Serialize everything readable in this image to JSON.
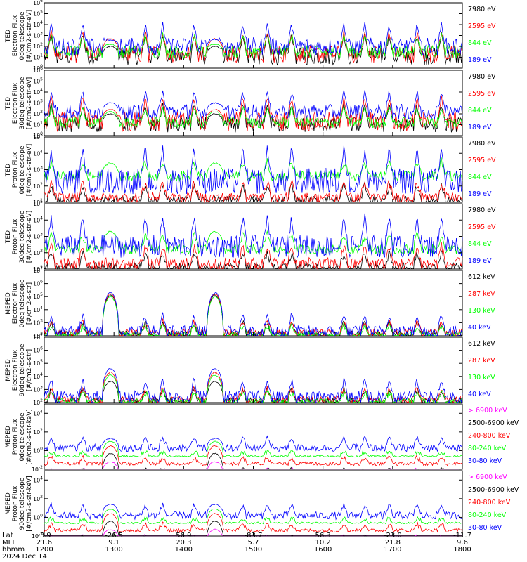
{
  "colors": {
    "blue": "#0000ff",
    "red": "#ff0000",
    "green": "#00ff00",
    "black": "#000000",
    "magenta": "#ff00ff"
  },
  "bottom_axis": {
    "row_labels": [
      "Lat",
      "MLT",
      "hhmm",
      "2024 Dec 14"
    ],
    "lat": [
      "-3.9",
      "-26.5",
      "56.9",
      "-83.7",
      "56.3",
      "-23.0",
      "-11.7"
    ],
    "mlt": [
      "21.6",
      "9.1",
      "20.3",
      "5.7",
      "10.2",
      "21.8",
      "9.6"
    ],
    "hhmm": [
      "1200",
      "1300",
      "1400",
      "1500",
      "1600",
      "1700",
      "1800"
    ]
  },
  "chart_data": [
    {
      "type": "line",
      "yscale": "log",
      "ylabel": [
        "TED",
        "Electron Flux",
        "0deg telescope",
        "[#/cm2-s-str-eV]"
      ],
      "yticks": [
        "10^0",
        "10^1",
        "10^2",
        "10^3",
        "10^4",
        "10^5",
        "10^6"
      ],
      "ylim": [
        1,
        1000000
      ],
      "xlim": [
        1200,
        1800
      ],
      "series": [
        {
          "name": "7980 eV",
          "color": "black",
          "base": 1.1,
          "noise": 0.8,
          "arcs": 1,
          "arc_peak": 2.0
        },
        {
          "name": "2595 eV",
          "color": "red",
          "base": 1.3,
          "noise": 0.8,
          "arcs": 1,
          "arc_peak": 2.7
        },
        {
          "name": "844 eV",
          "color": "green",
          "base": 1.5,
          "noise": 0.6,
          "arcs": 1,
          "arc_peak": 2.2
        },
        {
          "name": "189 eV",
          "color": "blue",
          "base": 2.0,
          "noise": 0.8,
          "arcs": 1,
          "arc_peak": 2.6
        }
      ]
    },
    {
      "type": "line",
      "yscale": "log",
      "ylabel": [
        "TED",
        "Electron Flux",
        "30deg telescope",
        "[#/cm2-s-str-eV]"
      ],
      "yticks": [
        "10^0",
        "10^1",
        "10^2",
        "10^3",
        "10^4",
        "10^5",
        "10^6"
      ],
      "ylim": [
        1,
        1000000
      ],
      "xlim": [
        1200,
        1800
      ],
      "series": [
        {
          "name": "7980 eV",
          "color": "black",
          "base": 1.0,
          "noise": 0.7,
          "arcs": 1,
          "arc_peak": 2.0
        },
        {
          "name": "2595 eV",
          "color": "red",
          "base": 1.3,
          "noise": 0.9,
          "arcs": 1,
          "arc_peak": 2.4
        },
        {
          "name": "844 eV",
          "color": "green",
          "base": 1.2,
          "noise": 0.5,
          "arcs": 1,
          "arc_peak": 2.2
        },
        {
          "name": "189 eV",
          "color": "blue",
          "base": 2.2,
          "noise": 0.7,
          "arcs": 1,
          "arc_peak": 3.0
        }
      ]
    },
    {
      "type": "line",
      "yscale": "log",
      "ylabel": [
        "TED",
        "Proton Flux",
        "0deg telescope",
        "[#/cm2-s-str-eV]"
      ],
      "yticks": [
        "10^1",
        "10^2",
        "10^3",
        "10^4",
        "10^5"
      ],
      "ylim": [
        10,
        100000
      ],
      "xlim": [
        1200,
        1800
      ],
      "series": [
        {
          "name": "7980 eV",
          "color": "black",
          "base": 1.1,
          "noise": 0.3,
          "arcs": 0,
          "arc_peak": 0
        },
        {
          "name": "2595 eV",
          "color": "red",
          "base": 1.3,
          "noise": 0.3,
          "arcs": 0,
          "arc_peak": 0
        },
        {
          "name": "844 eV",
          "color": "green",
          "base": 2.6,
          "noise": 0.3,
          "arcs": 1,
          "arc_peak": 3.4
        },
        {
          "name": "189 eV",
          "color": "blue",
          "base": 2.3,
          "noise": 0.8,
          "arcs": 0,
          "arc_peak": 0
        }
      ]
    },
    {
      "type": "line",
      "yscale": "log",
      "ylabel": [
        "TED",
        "Proton Flux",
        "30deg telescope",
        "[#/cm2-s-str-eV]"
      ],
      "yticks": [
        "10^1",
        "10^2",
        "10^3",
        "10^4",
        "10^5"
      ],
      "ylim": [
        10,
        100000
      ],
      "xlim": [
        1200,
        1800
      ],
      "series": [
        {
          "name": "7980 eV",
          "color": "black",
          "base": 1.1,
          "noise": 0.3,
          "arcs": 0,
          "arc_peak": 0
        },
        {
          "name": "2595 eV",
          "color": "red",
          "base": 1.3,
          "noise": 0.4,
          "arcs": 0,
          "arc_peak": 0
        },
        {
          "name": "844 eV",
          "color": "green",
          "base": 2.2,
          "noise": 0.3,
          "arcs": 1,
          "arc_peak": 3.3
        },
        {
          "name": "189 eV",
          "color": "blue",
          "base": 2.4,
          "noise": 0.7,
          "arcs": 0,
          "arc_peak": 0
        }
      ]
    },
    {
      "type": "line",
      "yscale": "log",
      "ylabel": [
        "MEPED",
        "Electron Flux",
        "0deg telescope",
        "[#/cm2-s-str]"
      ],
      "yticks": [
        "10^2",
        "10^3",
        "10^4",
        "10^5",
        "10^6",
        "10^7"
      ],
      "ylim": [
        100,
        10000000
      ],
      "xlim": [
        1200,
        1800
      ],
      "series": [
        {
          "name": "612 keV",
          "color": "black",
          "base": 2.1,
          "noise": 0.3,
          "arcs": 1,
          "arc_peak": 5.1
        },
        {
          "name": "287 keV",
          "color": "red",
          "base": 2.2,
          "noise": 0.3,
          "arcs": 1,
          "arc_peak": 5.2
        },
        {
          "name": "130 keV",
          "color": "green",
          "base": 2.1,
          "noise": 0.2,
          "arcs": 1,
          "arc_peak": 5.0
        },
        {
          "name": "40 keV",
          "color": "blue",
          "base": 2.3,
          "noise": 0.5,
          "arcs": 1,
          "arc_peak": 5.3
        }
      ]
    },
    {
      "type": "line",
      "yscale": "log",
      "ylabel": [
        "MEPED",
        "Electron Flux",
        "90deg telescope",
        "[#/cm2-s-str]"
      ],
      "yticks": [
        "10^2",
        "10^3",
        "10^4",
        "10^5",
        "10^6",
        "10^7"
      ],
      "ylim": [
        100,
        10000000
      ],
      "xlim": [
        1200,
        1800
      ],
      "series": [
        {
          "name": "612 keV",
          "color": "black",
          "base": 2.1,
          "noise": 0.3,
          "arcs": 1,
          "arc_peak": 3.6
        },
        {
          "name": "287 keV",
          "color": "red",
          "base": 2.2,
          "noise": 0.3,
          "arcs": 1,
          "arc_peak": 4.3
        },
        {
          "name": "130 keV",
          "color": "green",
          "base": 2.1,
          "noise": 0.2,
          "arcs": 1,
          "arc_peak": 4.1
        },
        {
          "name": "40 keV",
          "color": "blue",
          "base": 2.4,
          "noise": 0.5,
          "arcs": 1,
          "arc_peak": 4.6
        }
      ]
    },
    {
      "type": "line",
      "yscale": "log",
      "ylabel": [
        "MEPED",
        "Proton Flux",
        "0deg telescope",
        "[#/cm2-s-str-keV]"
      ],
      "yticks": [
        "10^-2",
        "10^0",
        "10^2",
        "10^4"
      ],
      "ylim": [
        0.01,
        100000
      ],
      "xlim": [
        1200,
        1800
      ],
      "series": [
        {
          "name": "> 6900 keV",
          "color": "magenta",
          "base": -2.5,
          "noise": 0.1,
          "arcs": 1,
          "arc_peak": -1.2
        },
        {
          "name": "2500-6900 keV",
          "color": "black",
          "base": -2.5,
          "noise": 0.1,
          "arcs": 1,
          "arc_peak": -0.3
        },
        {
          "name": "240-800 keV",
          "color": "red",
          "base": -1.4,
          "noise": 0.2,
          "arcs": 1,
          "arc_peak": 0.5
        },
        {
          "name": "80-240 keV",
          "color": "green",
          "base": -0.6,
          "noise": 0.1,
          "arcs": 1,
          "arc_peak": 1.0
        },
        {
          "name": "30-80 keV",
          "color": "blue",
          "base": 0.3,
          "noise": 0.4,
          "arcs": 1,
          "arc_peak": 1.3
        }
      ]
    },
    {
      "type": "line",
      "yscale": "log",
      "ylabel": [
        "MEPED",
        "Proton Flux",
        "90deg telescope",
        "[#/cm2-s-str-keV]"
      ],
      "yticks": [
        "10^-2",
        "10^0",
        "10^2",
        "10^4"
      ],
      "ylim": [
        0.01,
        100000
      ],
      "xlim": [
        1200,
        1800
      ],
      "series": [
        {
          "name": "> 6900 keV",
          "color": "magenta",
          "base": -2.5,
          "noise": 0.1,
          "arcs": 1,
          "arc_peak": -1.3
        },
        {
          "name": "2500-6900 keV",
          "color": "black",
          "base": -2.5,
          "noise": 0.1,
          "arcs": 1,
          "arc_peak": -0.4
        },
        {
          "name": "240-800 keV",
          "color": "red",
          "base": -1.4,
          "noise": 0.2,
          "arcs": 1,
          "arc_peak": 0.4
        },
        {
          "name": "80-240 keV",
          "color": "green",
          "base": -0.6,
          "noise": 0.1,
          "arcs": 1,
          "arc_peak": 0.9
        },
        {
          "name": "30-80 keV",
          "color": "blue",
          "base": 0.2,
          "noise": 0.4,
          "arcs": 1,
          "arc_peak": 1.4
        }
      ]
    }
  ]
}
